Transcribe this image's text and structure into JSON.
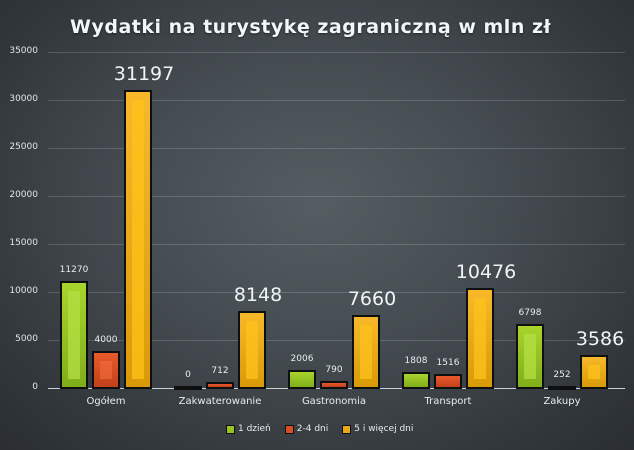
{
  "chart_data": {
    "type": "bar",
    "title": "Wydatki na turystykę zagraniczną w mln zł",
    "xlabel": "",
    "ylabel": "",
    "ylim": [
      0,
      35000
    ],
    "yticks": [
      "0",
      "5000",
      "10000",
      "15000",
      "20000",
      "25000",
      "30000",
      "35000"
    ],
    "grid": true,
    "legend_position": "bottom",
    "categories": [
      "Ogółem",
      "Zakwaterowanie",
      "Gastronomia",
      "Transport",
      "Zakupy"
    ],
    "series": [
      {
        "name": "1 dzień",
        "color": "#96c523",
        "values": [
          11270,
          0,
          2006,
          1808,
          6798
        ]
      },
      {
        "name": "2-4 dni",
        "color": "#d94e23",
        "values": [
          4000,
          712,
          790,
          1516,
          252
        ]
      },
      {
        "name": "5 i więcej dni",
        "color": "#eaa814",
        "values": [
          31197,
          8148,
          7660,
          10476,
          3586
        ]
      }
    ]
  }
}
